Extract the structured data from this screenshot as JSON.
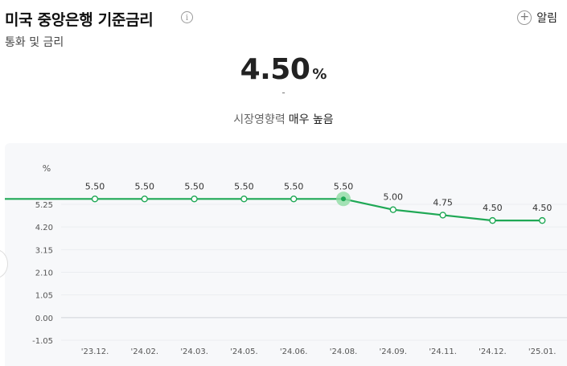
{
  "header": {
    "title": "미국 중앙은행 기준금리",
    "subtitle": "통화 및 금리",
    "alarm_label": "알림",
    "info_icon": "info-icon",
    "plus_icon": "plus-circle-icon"
  },
  "summary": {
    "value": "4.50",
    "unit": "%",
    "change": "-",
    "impact_label": "시장영향력",
    "impact_value": "매우 높음"
  },
  "colors": {
    "line": "#1fa855",
    "highlight": "#8fdca4",
    "chart_bg": "#f7f8fa"
  },
  "chart_data": {
    "type": "line",
    "ylabel": "%",
    "y_ticks": [
      "5.25",
      "4.20",
      "3.15",
      "2.10",
      "1.05",
      "0.00",
      "-1.05"
    ],
    "y_tick_values": [
      5.25,
      4.2,
      3.15,
      2.1,
      1.05,
      0.0,
      -1.05
    ],
    "ylim": [
      -1.05,
      6.3
    ],
    "categories": [
      "'23.12.",
      "'24.02.",
      "'24.03.",
      "'24.05.",
      "'24.06.",
      "'24.08.",
      "'24.09.",
      "'24.11.",
      "'24.12.",
      "'25.01."
    ],
    "values": [
      5.5,
      5.5,
      5.5,
      5.5,
      5.5,
      5.5,
      5.0,
      4.75,
      4.5,
      4.5
    ],
    "value_labels": [
      "5.50",
      "5.50",
      "5.50",
      "5.50",
      "5.50",
      "5.50",
      "5.00",
      "4.75",
      "4.50",
      "4.50"
    ],
    "highlight_index": 5,
    "grid": "horizontal"
  }
}
